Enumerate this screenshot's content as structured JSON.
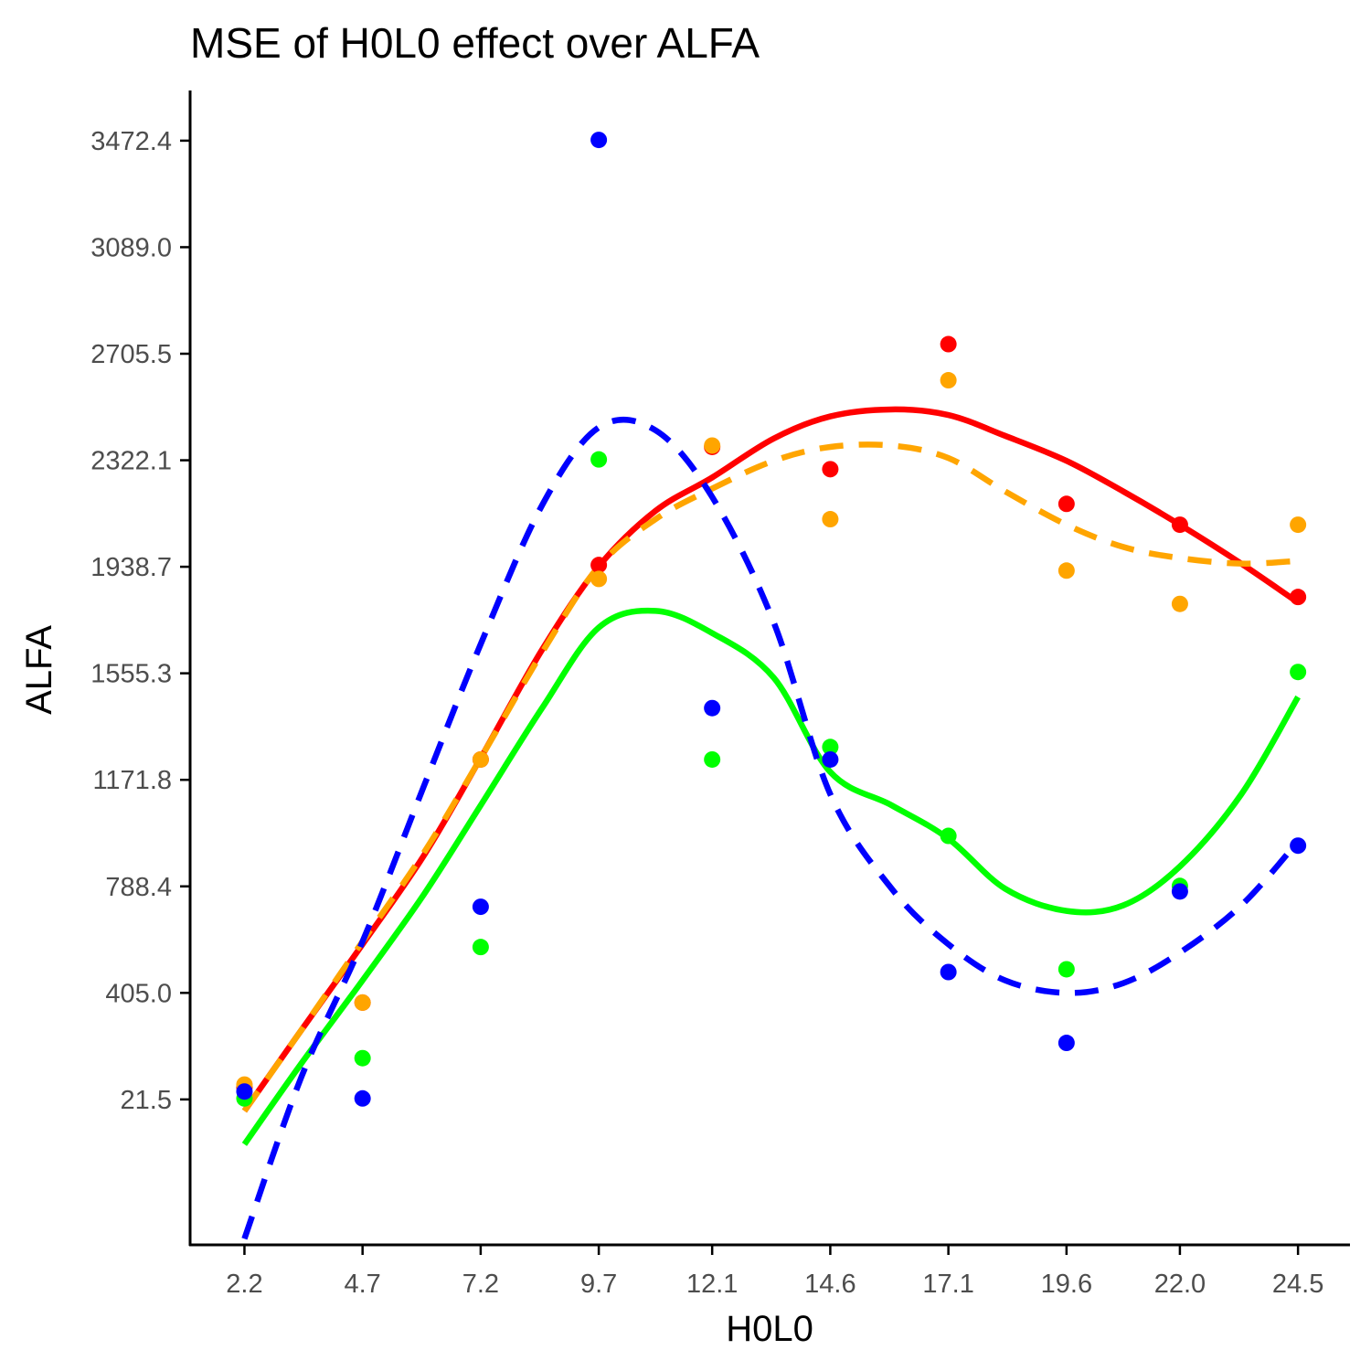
{
  "chart_data": {
    "type": "scatter",
    "title": "MSE of H0L0 effect over  ALFA",
    "xlabel": "H0L0",
    "ylabel": "ALFA",
    "x_ticks": [
      "2.2",
      "4.7",
      "7.2",
      "9.7",
      "12.1",
      "14.6",
      "17.1",
      "19.6",
      "22.0",
      "24.5"
    ],
    "y_ticks": [
      "21.5",
      "405.0",
      "788.4",
      "1171.8",
      "1555.3",
      "1938.7",
      "2322.1",
      "2705.5",
      "3089.0",
      "3472.4"
    ],
    "x": [
      2.2,
      4.7,
      7.2,
      9.7,
      12.1,
      14.6,
      17.1,
      19.6,
      22.0,
      24.5
    ],
    "series": [
      {
        "color": "#ff0000",
        "line": "solid",
        "points": [
          65,
          370,
          1245,
          1945,
          2370,
          2290,
          2740,
          2165,
          2090,
          1830
        ],
        "smooth": [
          [
            2.2,
            -20
          ],
          [
            3.4,
            270
          ],
          [
            4.7,
            580
          ],
          [
            6.0,
            900
          ],
          [
            7.2,
            1250
          ],
          [
            8.5,
            1640
          ],
          [
            9.7,
            1940
          ],
          [
            10.9,
            2140
          ],
          [
            12.1,
            2260
          ],
          [
            13.4,
            2400
          ],
          [
            14.6,
            2480
          ],
          [
            15.9,
            2505
          ],
          [
            17.1,
            2485
          ],
          [
            18.3,
            2410
          ],
          [
            19.6,
            2320
          ],
          [
            20.8,
            2210
          ],
          [
            22.0,
            2090
          ],
          [
            23.3,
            1950
          ],
          [
            24.5,
            1810
          ]
        ]
      },
      {
        "color": "#ffa500",
        "line": "dashed",
        "points": [
          75,
          370,
          1245,
          1895,
          2375,
          2110,
          2610,
          1925,
          1805,
          2090
        ],
        "smooth": [
          [
            2.2,
            -20
          ],
          [
            3.4,
            270
          ],
          [
            4.7,
            590
          ],
          [
            6.0,
            910
          ],
          [
            7.2,
            1250
          ],
          [
            8.5,
            1630
          ],
          [
            9.7,
            1940
          ],
          [
            10.9,
            2110
          ],
          [
            12.1,
            2220
          ],
          [
            13.4,
            2320
          ],
          [
            14.6,
            2370
          ],
          [
            15.9,
            2375
          ],
          [
            17.1,
            2330
          ],
          [
            18.3,
            2210
          ],
          [
            19.6,
            2090
          ],
          [
            20.8,
            2010
          ],
          [
            22.0,
            1970
          ],
          [
            23.3,
            1950
          ],
          [
            24.5,
            1960
          ]
        ]
      },
      {
        "color": "#00ff00",
        "line": "solid",
        "points": [
          25,
          170,
          570,
          2325,
          1245,
          1290,
          970,
          490,
          790,
          1560
        ],
        "smooth": [
          [
            2.2,
            -140
          ],
          [
            3.4,
            150
          ],
          [
            4.7,
            450
          ],
          [
            6.0,
            760
          ],
          [
            7.2,
            1080
          ],
          [
            8.5,
            1430
          ],
          [
            9.7,
            1720
          ],
          [
            10.9,
            1780
          ],
          [
            12.1,
            1700
          ],
          [
            13.4,
            1540
          ],
          [
            14.6,
            1200
          ],
          [
            15.9,
            1080
          ],
          [
            17.1,
            960
          ],
          [
            18.3,
            780
          ],
          [
            19.6,
            700
          ],
          [
            20.8,
            720
          ],
          [
            22.0,
            860
          ],
          [
            23.3,
            1120
          ],
          [
            24.5,
            1470
          ]
        ]
      },
      {
        "color": "#0000ff",
        "line": "dashed",
        "points": [
          50,
          25,
          715,
          3475,
          1430,
          1245,
          480,
          225,
          770,
          935
        ],
        "smooth": [
          [
            2.2,
            -480
          ],
          [
            3.4,
            100
          ],
          [
            4.7,
            590
          ],
          [
            6.0,
            1150
          ],
          [
            7.2,
            1660
          ],
          [
            8.5,
            2160
          ],
          [
            9.7,
            2440
          ],
          [
            10.9,
            2430
          ],
          [
            12.1,
            2190
          ],
          [
            13.4,
            1740
          ],
          [
            14.6,
            1120
          ],
          [
            15.9,
            780
          ],
          [
            17.1,
            580
          ],
          [
            18.3,
            450
          ],
          [
            19.6,
            405
          ],
          [
            20.8,
            440
          ],
          [
            22.0,
            550
          ],
          [
            23.3,
            720
          ],
          [
            24.5,
            950
          ]
        ]
      }
    ],
    "xlim": [
      1.05,
      25.6
    ],
    "ylim": [
      -502,
      3653
    ],
    "grid": false,
    "legend": "none"
  }
}
